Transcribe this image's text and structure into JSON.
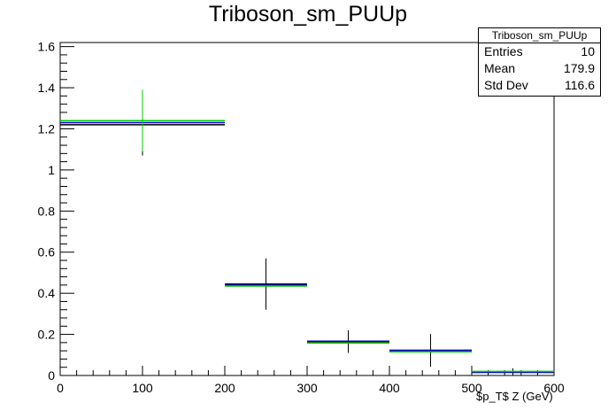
{
  "chart_data": {
    "type": "histogram",
    "title": "Triboson_sm_PUUp",
    "xlabel": "$p_{T}$ Z (GeV)",
    "xlabel_display": "$p_T$ Z (GeV)",
    "ylabel": "",
    "xlim": [
      0,
      600
    ],
    "ylim": [
      0,
      1.62
    ],
    "x_ticks": [
      "0",
      "100",
      "200",
      "300",
      "400",
      "500",
      "600"
    ],
    "y_ticks": [
      "0",
      "0.2",
      "0.4",
      "0.6",
      "0.8",
      "1",
      "1.2",
      "1.4",
      "1.6"
    ],
    "bins": [
      {
        "low": 0,
        "high": 200,
        "center": 100
      },
      {
        "low": 200,
        "high": 300,
        "center": 250
      },
      {
        "low": 300,
        "high": 400,
        "center": 350
      },
      {
        "low": 400,
        "high": 500,
        "center": 450
      },
      {
        "low": 500,
        "high": 600,
        "center": 550
      }
    ],
    "series": [
      {
        "color": "#000000",
        "values": [
          1.22,
          0.445,
          0.165,
          0.122,
          0.015
        ],
        "errors": [
          0.15,
          0.125,
          0.055,
          0.08,
          0.02
        ]
      },
      {
        "color": "#0000cc",
        "values": [
          1.23,
          0.44,
          0.167,
          0.123,
          0.016
        ],
        "errors": [
          0,
          0,
          0,
          0,
          0
        ]
      },
      {
        "color": "#00cc00",
        "values": [
          1.24,
          0.435,
          0.158,
          0.115,
          0.02
        ],
        "errors": [
          0.15,
          0,
          0,
          0,
          0
        ]
      }
    ],
    "stats": {
      "name": "Triboson_sm_PUUp",
      "entries_label": "Entries",
      "entries": "10",
      "mean_label": "Mean",
      "mean": "179.9",
      "std_label": "Std Dev",
      "std": "116.6"
    },
    "grid": false,
    "legend": "stats box top-right"
  }
}
